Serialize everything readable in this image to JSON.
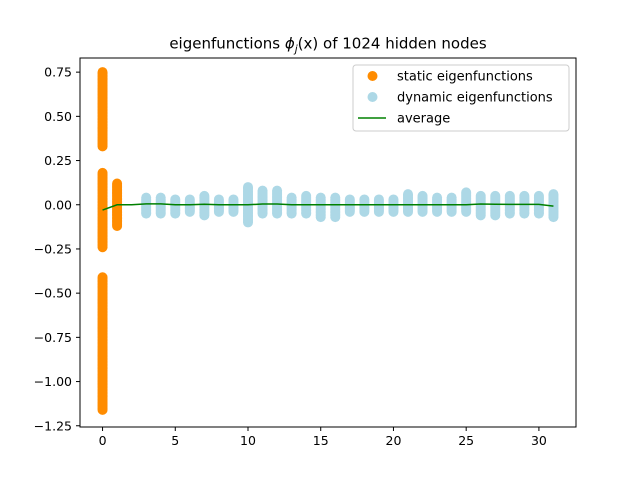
{
  "chart_data": {
    "type": "scatter",
    "title_prefix": "eigenfunctions ",
    "title_math": "ϕ",
    "title_sub": "j",
    "title_arg": "(x)",
    "title_suffix": " of 1024 hidden nodes",
    "xlim": [
      -1.55,
      32.55
    ],
    "ylim": [
      -1.257,
      0.83
    ],
    "x_ticks": [
      0,
      5,
      10,
      15,
      20,
      25,
      30
    ],
    "y_ticks": [
      0.75,
      0.5,
      0.25,
      0.0,
      -0.25,
      -0.5,
      -0.75,
      -1.0,
      -1.25
    ],
    "y_tick_labels": [
      "0.75",
      "0.50",
      "0.25",
      "0.00",
      "−0.25",
      "−0.50",
      "−0.75",
      "−1.00",
      "−1.25"
    ],
    "grid": false,
    "legend_position": "top-right",
    "series": [
      {
        "name": "static eigenfunctions",
        "kind": "scatter",
        "color": "#ff8c00",
        "ranges": [
          {
            "x": 0,
            "min": 0.33,
            "max": 0.75
          },
          {
            "x": 0,
            "min": -0.24,
            "max": 0.18
          },
          {
            "x": 0,
            "min": -1.16,
            "max": -0.41
          },
          {
            "x": 1,
            "min": -0.12,
            "max": 0.12
          }
        ]
      },
      {
        "name": "dynamic eigenfunctions",
        "kind": "scatter",
        "color": "#add8e6",
        "ranges": [
          {
            "x": 3,
            "min": -0.05,
            "max": 0.04
          },
          {
            "x": 4,
            "min": -0.05,
            "max": 0.04
          },
          {
            "x": 5,
            "min": -0.05,
            "max": 0.03
          },
          {
            "x": 6,
            "min": -0.04,
            "max": 0.03
          },
          {
            "x": 7,
            "min": -0.06,
            "max": 0.05
          },
          {
            "x": 8,
            "min": -0.04,
            "max": 0.03
          },
          {
            "x": 9,
            "min": -0.04,
            "max": 0.03
          },
          {
            "x": 10,
            "min": -0.1,
            "max": 0.1
          },
          {
            "x": 11,
            "min": -0.05,
            "max": 0.08
          },
          {
            "x": 12,
            "min": -0.05,
            "max": 0.08
          },
          {
            "x": 13,
            "min": -0.05,
            "max": 0.04
          },
          {
            "x": 14,
            "min": -0.05,
            "max": 0.05
          },
          {
            "x": 15,
            "min": -0.07,
            "max": 0.04
          },
          {
            "x": 16,
            "min": -0.07,
            "max": 0.04
          },
          {
            "x": 17,
            "min": -0.04,
            "max": 0.03
          },
          {
            "x": 18,
            "min": -0.04,
            "max": 0.03
          },
          {
            "x": 19,
            "min": -0.04,
            "max": 0.03
          },
          {
            "x": 20,
            "min": -0.04,
            "max": 0.03
          },
          {
            "x": 21,
            "min": -0.04,
            "max": 0.06
          },
          {
            "x": 22,
            "min": -0.04,
            "max": 0.05
          },
          {
            "x": 23,
            "min": -0.04,
            "max": 0.04
          },
          {
            "x": 24,
            "min": -0.04,
            "max": 0.04
          },
          {
            "x": 25,
            "min": -0.04,
            "max": 0.07
          },
          {
            "x": 26,
            "min": -0.06,
            "max": 0.05
          },
          {
            "x": 27,
            "min": -0.06,
            "max": 0.05
          },
          {
            "x": 28,
            "min": -0.05,
            "max": 0.05
          },
          {
            "x": 29,
            "min": -0.05,
            "max": 0.05
          },
          {
            "x": 30,
            "min": -0.05,
            "max": 0.05
          },
          {
            "x": 31,
            "min": -0.07,
            "max": 0.06
          }
        ]
      },
      {
        "name": "average",
        "kind": "line",
        "color": "#008000",
        "x": [
          0,
          1,
          2,
          3,
          4,
          5,
          6,
          7,
          8,
          9,
          10,
          11,
          12,
          13,
          14,
          15,
          16,
          17,
          18,
          19,
          20,
          21,
          22,
          23,
          24,
          25,
          26,
          27,
          28,
          29,
          30,
          31
        ],
        "y": [
          -0.03,
          0.0,
          0.0,
          0.005,
          0.005,
          0.0,
          0.0,
          0.003,
          0.0,
          0.0,
          0.0,
          0.004,
          0.004,
          0.0,
          0.0,
          0.0,
          0.0,
          0.0,
          0.0,
          0.0,
          0.0,
          0.0,
          0.0,
          0.0,
          0.0,
          0.0,
          0.004,
          0.003,
          0.002,
          0.002,
          0.002,
          -0.008
        ]
      }
    ]
  }
}
